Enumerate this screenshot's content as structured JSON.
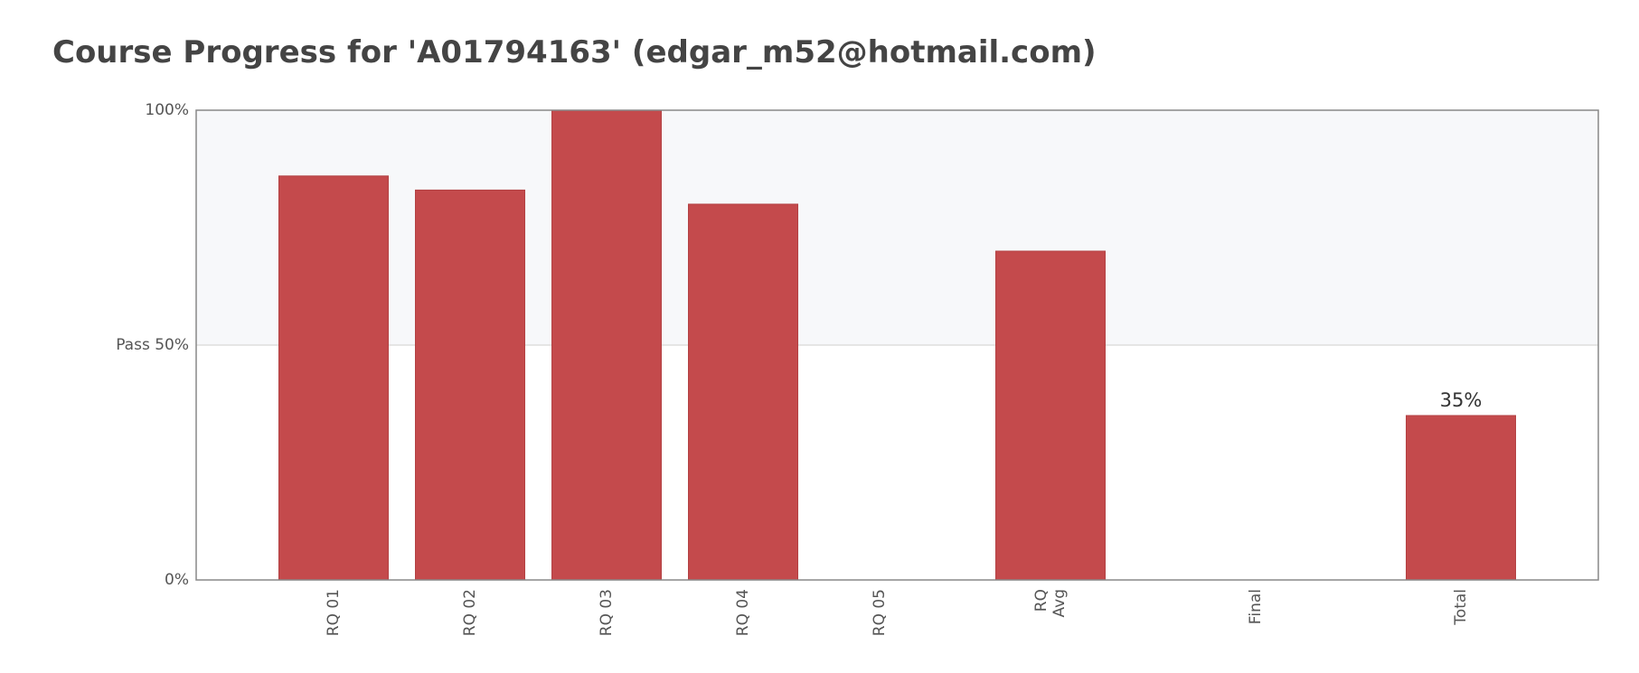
{
  "chart_data": {
    "type": "bar",
    "title": "Course Progress for 'A01794163' (edgar_m52@hotmail.com)",
    "categories": [
      [
        "RQ 01"
      ],
      [
        "RQ 02"
      ],
      [
        "RQ 03"
      ],
      [
        "RQ 04"
      ],
      [
        "RQ 05"
      ],
      [
        "RQ",
        "Avg"
      ],
      [
        "Final"
      ],
      [
        "Total"
      ]
    ],
    "values": [
      86,
      83,
      100,
      80,
      0,
      70,
      0,
      35
    ],
    "data_labels": [
      "",
      "",
      "",
      "",
      "",
      "",
      "",
      "35%"
    ],
    "ylim": [
      0,
      100
    ],
    "y_ticks": [
      {
        "value": 0,
        "label": "0%"
      },
      {
        "value": 50,
        "label": "Pass 50%"
      },
      {
        "value": 100,
        "label": "100%"
      }
    ],
    "pass_threshold": 50,
    "colors": {
      "bar": "#c44a4c",
      "pass_band": "#f7f8fa",
      "axis": "#888888",
      "gridline": "#dddddd"
    },
    "grid": false,
    "legend": "none"
  }
}
